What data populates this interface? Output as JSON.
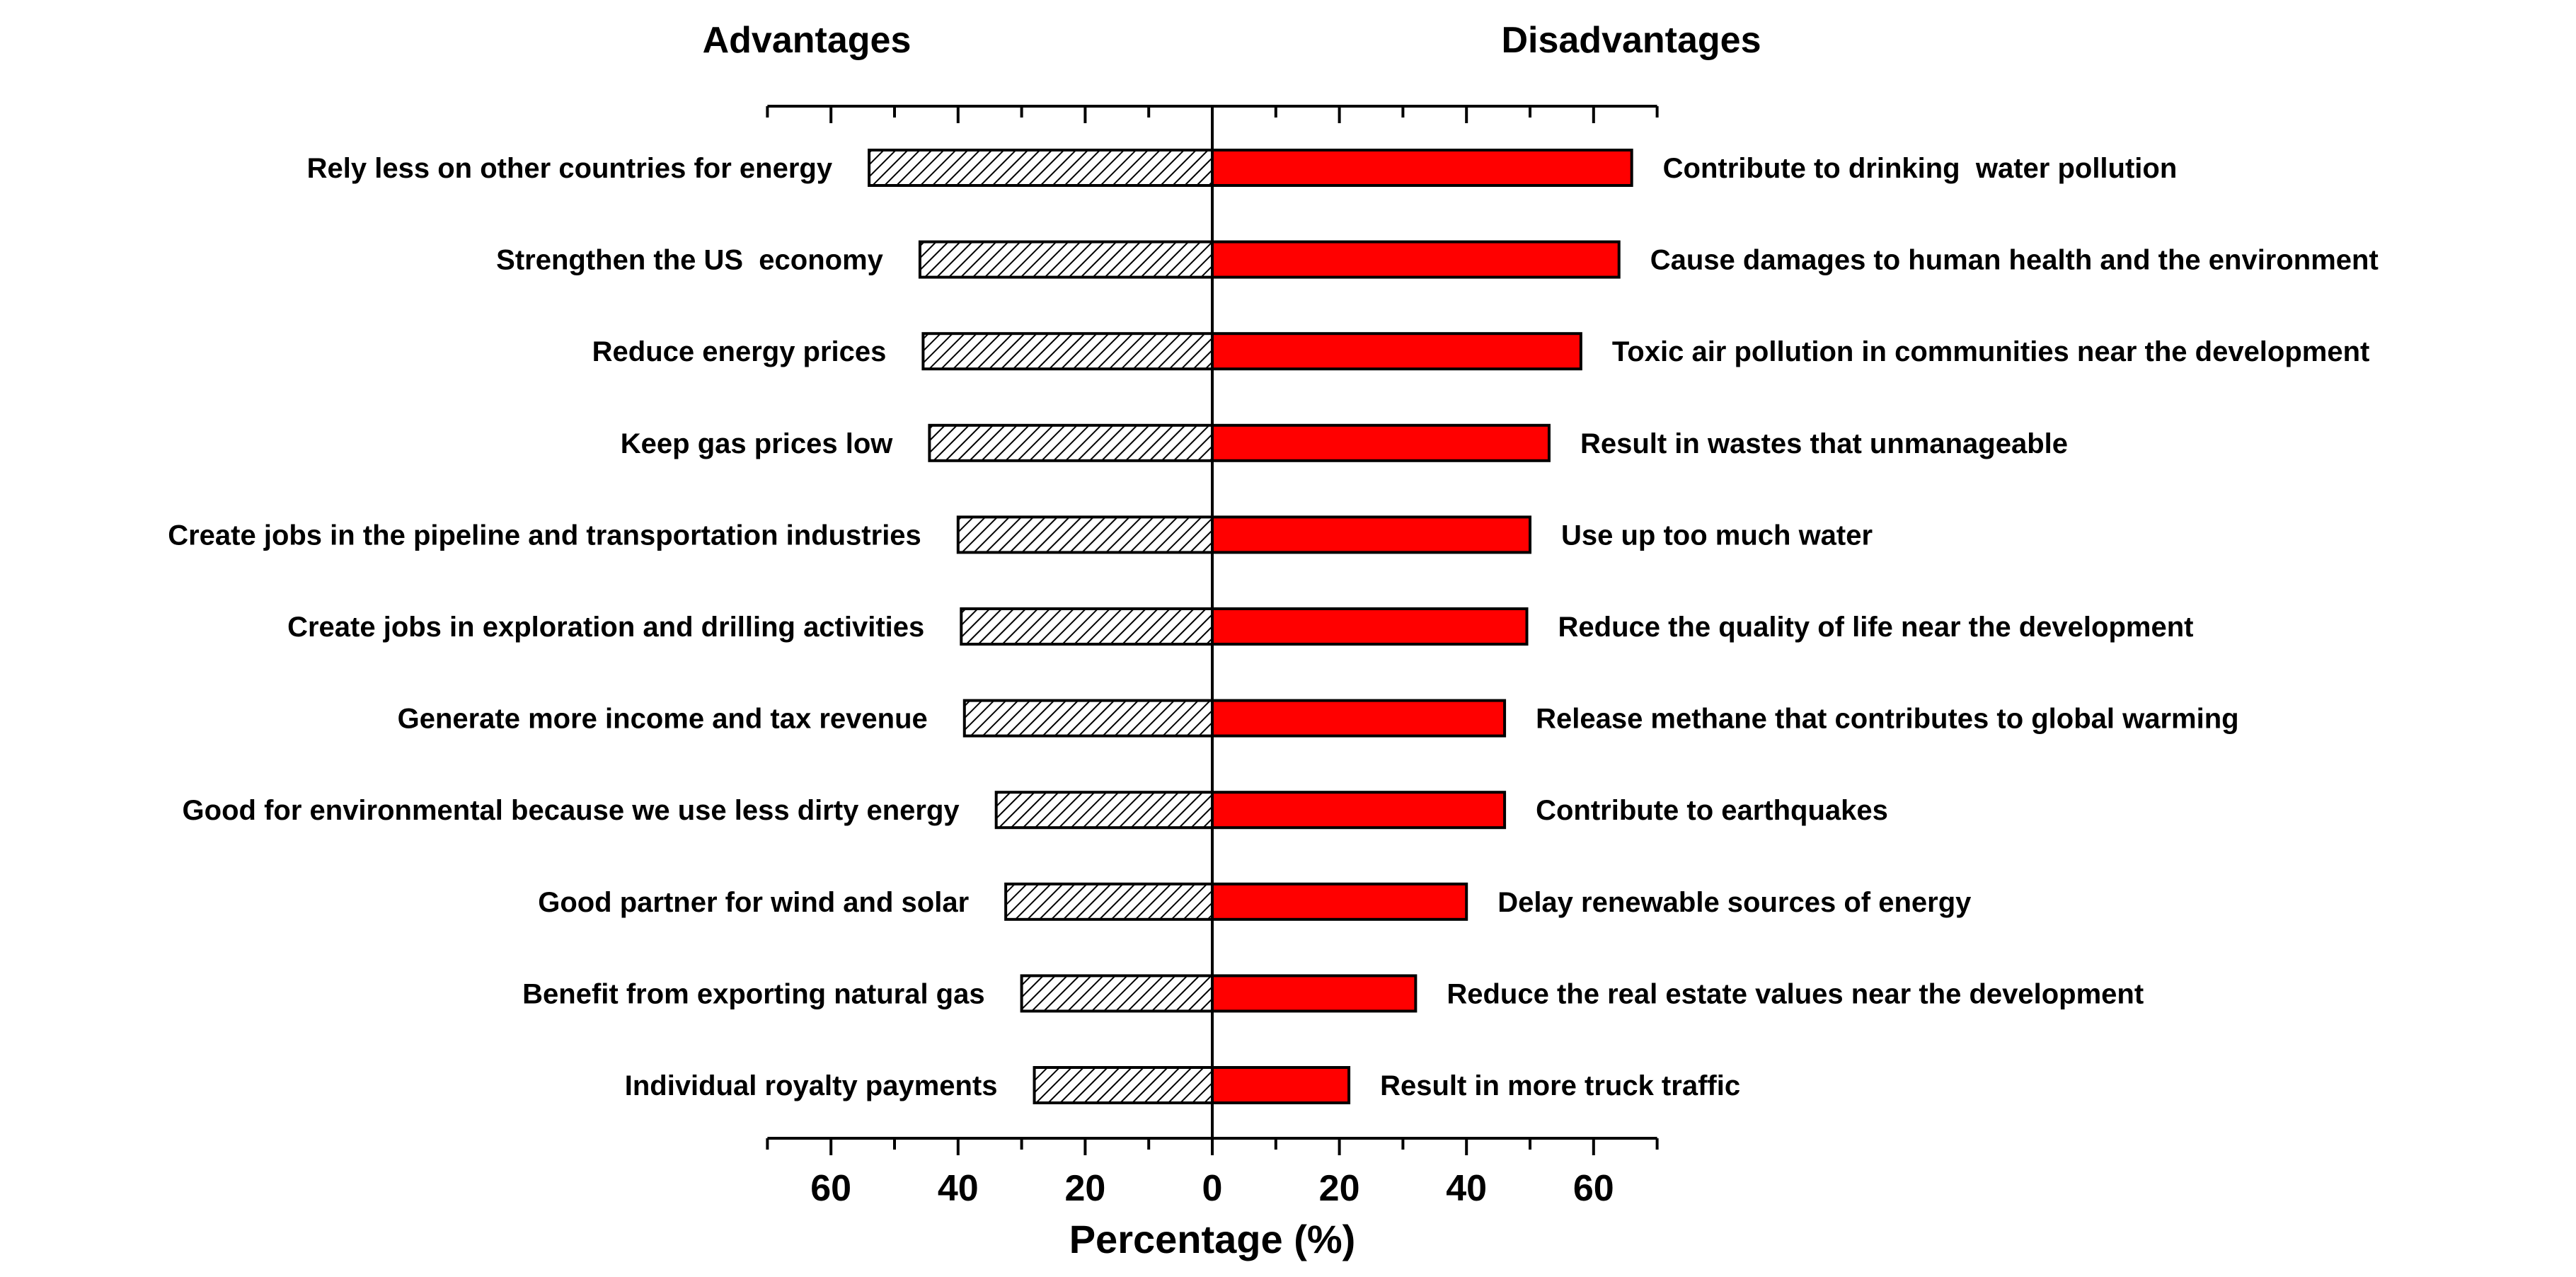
{
  "chart_data": {
    "type": "bar",
    "orientation": "horizontal",
    "layout": "diverging",
    "xlabel": "Percentage (%)",
    "xlim": [
      -70,
      70
    ],
    "xticks": [
      -60,
      -40,
      -20,
      0,
      20,
      40,
      60
    ],
    "xtick_labels": [
      "60",
      "40",
      "20",
      "0",
      "20",
      "40",
      "60"
    ],
    "minor_tick_step": 10,
    "grid": false,
    "legend": "none",
    "series": [
      {
        "name": "Advantages",
        "side": "left",
        "fill": "hatched",
        "color": "#000000",
        "categories": [
          "Rely less on other countries for energy",
          "Strengthen the US  economy",
          "Reduce energy prices",
          "Keep gas prices low",
          "Create jobs in the pipeline and transportation industries",
          "Create jobs in exploration and drilling activities",
          "Generate more income and tax revenue",
          "Good for environmental because we use less dirty energy",
          "Good partner for wind and solar",
          "Benefit from exporting natural gas",
          "Individual royalty payments"
        ],
        "values": [
          54,
          46,
          45.5,
          44.5,
          40,
          39.5,
          39,
          34,
          32.5,
          30,
          28
        ]
      },
      {
        "name": "Disadvantages",
        "side": "right",
        "fill": "solid",
        "color": "#ff0000",
        "categories": [
          "Contribute to drinking  water pollution",
          "Cause damages to human health and the environment",
          "Toxic air pollution in communities near the development",
          "Result in wastes that unmanageable",
          "Use up too much water",
          "Reduce the quality of life near the development",
          "Release methane that contributes to global warming",
          "Contribute to earthquakes",
          "Delay renewable sources of energy",
          "Reduce the real estate values near the development",
          "Result in more truck traffic"
        ],
        "values": [
          66,
          64,
          58,
          53,
          50,
          49.5,
          46,
          46,
          40,
          32,
          21.5
        ]
      }
    ]
  },
  "colors": {
    "bar_outline": "#000000",
    "disadvantage_fill": "#ff0000",
    "hatch": "#000000",
    "background": "#ffffff"
  }
}
